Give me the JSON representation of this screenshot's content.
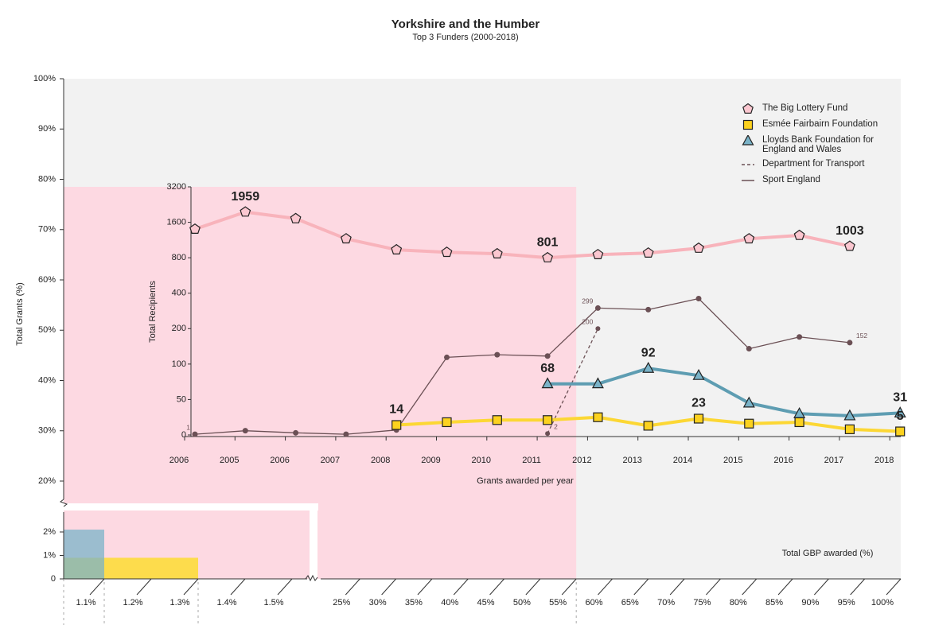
{
  "chart_data": [
    {
      "type": "mosaic",
      "title": "Yorkshire and the Humber",
      "subtitle": "Top 3 Funders (2000-2018)",
      "y_label": "Total Grants (%)",
      "x_label": "Total GBP awarded (%)",
      "background": "#f2f2f2",
      "x_axis": [
        {
          "lim": [
            1,
            1.55
          ],
          "ticks": [
            {
              "value": 1.1,
              "label": "1.1%"
            },
            {
              "value": 1.2,
              "label": "1.2%"
            },
            {
              "value": 1.3,
              "label": "1.3%"
            },
            {
              "value": 1.4,
              "label": "1.4%"
            },
            {
              "value": 1.5,
              "label": "1.5%"
            }
          ]
        },
        {
          "lim": [
            20,
            100
          ],
          "ticks": [
            {
              "value": 25,
              "label": "25%"
            },
            {
              "value": 30,
              "label": "30%"
            },
            {
              "value": 35,
              "label": "35%"
            },
            {
              "value": 40,
              "label": "40%"
            },
            {
              "value": 45,
              "label": "45%"
            },
            {
              "value": 50,
              "label": "50%"
            },
            {
              "value": 55,
              "label": "55%"
            },
            {
              "value": 60,
              "label": "60%"
            },
            {
              "value": 65,
              "label": "65%"
            },
            {
              "value": 70,
              "label": "70%"
            },
            {
              "value": 75,
              "label": "75%"
            },
            {
              "value": 80,
              "label": "80%"
            },
            {
              "value": 85,
              "label": "85%"
            },
            {
              "value": 90,
              "label": "90%"
            },
            {
              "value": 95,
              "label": "95%"
            },
            {
              "value": 100,
              "label": "100%"
            }
          ]
        }
      ],
      "y_axis": [
        {
          "lim": [
            0,
            3
          ],
          "ticks": [
            0,
            {
              "value": 1,
              "label": "1%"
            },
            {
              "value": 2,
              "label": "2%"
            }
          ]
        },
        {
          "lim": [
            20,
            100
          ],
          "ticks": [
            {
              "value": 20,
              "label": "20%"
            },
            {
              "value": 30,
              "label": "30%"
            },
            {
              "value": 40,
              "label": "40%"
            },
            {
              "value": 50,
              "label": "50%"
            },
            {
              "value": 60,
              "label": "60%"
            },
            {
              "value": 70,
              "label": "70%"
            },
            {
              "value": 80,
              "label": "80%"
            },
            {
              "value": 90,
              "label": "90%"
            },
            {
              "value": 100,
              "label": "100%"
            }
          ]
        }
      ],
      "series": [
        {
          "color": "#fdd9e2",
          "x": 55,
          "y": 78.5
        },
        {
          "color": "#fddc4c",
          "x": 1.3,
          "y": 0.9
        },
        {
          "color": "#7ab3c8",
          "x": 1.1,
          "y": 2.1,
          "opacity": 0.75
        }
      ]
    },
    {
      "type": "line",
      "x_label": "Grants awarded per year",
      "y_label": "Total Recipients",
      "categories": [
        "2006",
        "2005",
        "2006",
        "2007",
        "2008",
        "2009",
        "2010",
        "2011",
        "2012",
        "2013",
        "2014",
        "2015",
        "2016",
        "2017",
        "2018"
      ],
      "yscale": "log",
      "ylim": [
        0,
        3200
      ],
      "yticks": [
        0,
        50,
        100,
        200,
        400,
        800,
        1600,
        3200
      ],
      "series": [
        {
          "name": "The Big Lottery Fund",
          "color": "#f8b3bb",
          "marker": "pentagon",
          "marker_color": "#fbc7d0",
          "values": [
            1400,
            1959,
            1720,
            1160,
            935,
            890,
            865,
            801,
            851,
            878,
            965,
            1160,
            1240,
            1003,
            null
          ],
          "value_labels": [
            null,
            "1959",
            null,
            null,
            null,
            null,
            null,
            "801",
            null,
            null,
            null,
            null,
            null,
            "1003",
            null
          ]
        },
        {
          "name": "Esmée Fairbairn Foundation",
          "color": "#fcd734",
          "marker": "square",
          "marker_color": "#fcd21f",
          "values": [
            null,
            null,
            null,
            null,
            14,
            18,
            21,
            21,
            25,
            13,
            23,
            16,
            18,
            8,
            5
          ],
          "value_labels": [
            null,
            null,
            null,
            null,
            "14",
            null,
            null,
            null,
            null,
            null,
            "23",
            null,
            null,
            null,
            "5"
          ]
        },
        {
          "name": "Lloyds Bank Foundation for England and Wales",
          "color": "#5e9db2",
          "marker": "triangle",
          "marker_color": "#7ab3c8",
          "values": [
            null,
            null,
            null,
            null,
            null,
            null,
            null,
            68,
            68,
            92,
            80,
            45,
            30,
            27,
            31
          ],
          "value_labels": [
            null,
            null,
            null,
            null,
            null,
            null,
            null,
            "68",
            null,
            "92",
            null,
            null,
            null,
            null,
            "31"
          ]
        },
        {
          "name": "Department for Transport",
          "color": "#6b5055",
          "dashed": true,
          "values": [
            null,
            null,
            null,
            null,
            null,
            null,
            null,
            2,
            200,
            null,
            null,
            null,
            null,
            null,
            null
          ],
          "value_labels": [
            null,
            null,
            null,
            null,
            null,
            null,
            null,
            "2",
            "200",
            null,
            null,
            null,
            null,
            null,
            null
          ]
        },
        {
          "name": "Sport England",
          "color": "#6b5055",
          "marker": "circle",
          "marker_color": "#6b5055",
          "values": [
            1,
            6,
            3,
            1,
            7,
            114,
            120,
            117,
            299,
            290,
            360,
            135,
            170,
            152,
            null
          ],
          "value_labels": [
            "1",
            null,
            null,
            null,
            null,
            null,
            null,
            null,
            "299",
            null,
            null,
            null,
            null,
            "152",
            null
          ]
        }
      ]
    }
  ]
}
